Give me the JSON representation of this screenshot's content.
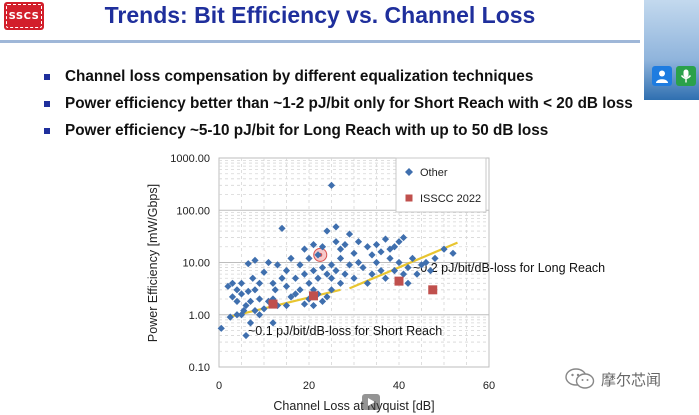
{
  "logo": {
    "text": "SSCS"
  },
  "title": "Trends: Bit Efficiency vs. Channel Loss",
  "bullets": [
    "Channel loss compensation by different equalization techniques",
    "Power efficiency better than ~1-2 pJ/bit only for Short Reach with < 20 dB loss",
    "Power efficiency ~5-10 pJ/bit for Long Reach with up to 50 dB loss"
  ],
  "watermark": {
    "text": "摩尔芯闻"
  },
  "colors": {
    "title": "#1f2f9c",
    "other": "#3f6fae",
    "isscc": "#c0504d",
    "trend": "#e8c530",
    "highlight": "#d9534f"
  },
  "chart_data": {
    "type": "scatter",
    "title": "",
    "xlabel": "Channel Loss at Nyquist [dB]",
    "ylabel": "Power Efficiency [mW/Gbps]",
    "xlim": [
      0,
      60
    ],
    "ylim": [
      0.1,
      1000
    ],
    "yscale": "log",
    "x_ticks": [
      "0",
      "20",
      "40",
      "60"
    ],
    "y_ticks": [
      "0.10",
      "1.00",
      "10.00",
      "100.00",
      "1000.00"
    ],
    "legend": {
      "position": "top-right",
      "entries": [
        "Other",
        "ISSCC 2022"
      ]
    },
    "series": [
      {
        "name": "Other",
        "marker": "diamond",
        "points": [
          [
            0.5,
            0.55
          ],
          [
            2,
            3.5
          ],
          [
            2.5,
            0.9
          ],
          [
            3,
            2.2
          ],
          [
            3,
            4
          ],
          [
            4,
            1
          ],
          [
            4,
            1.8
          ],
          [
            4,
            3
          ],
          [
            5,
            1
          ],
          [
            5,
            2.5
          ],
          [
            5,
            4
          ],
          [
            5.5,
            1.2
          ],
          [
            6,
            0.4
          ],
          [
            6,
            1.5
          ],
          [
            6.5,
            2.8
          ],
          [
            6.5,
            9.5
          ],
          [
            7,
            0.7
          ],
          [
            7,
            1.8
          ],
          [
            7.5,
            5
          ],
          [
            8,
            1.2
          ],
          [
            8,
            3
          ],
          [
            8,
            11
          ],
          [
            9,
            1
          ],
          [
            9,
            2
          ],
          [
            9,
            4
          ],
          [
            10,
            1.3
          ],
          [
            10,
            6.5
          ],
          [
            11,
            1.8
          ],
          [
            11,
            10
          ],
          [
            12,
            0.7
          ],
          [
            12,
            2
          ],
          [
            12,
            4
          ],
          [
            12.5,
            3
          ],
          [
            13,
            1.5
          ],
          [
            13,
            9
          ],
          [
            14,
            5
          ],
          [
            14,
            45
          ],
          [
            15,
            1.5
          ],
          [
            15,
            3.5
          ],
          [
            15,
            7
          ],
          [
            16,
            2.2
          ],
          [
            16,
            12
          ],
          [
            17,
            2.5
          ],
          [
            17,
            5
          ],
          [
            18,
            3
          ],
          [
            18,
            9
          ],
          [
            19,
            1.6
          ],
          [
            19,
            6
          ],
          [
            19,
            18
          ],
          [
            20,
            2
          ],
          [
            20,
            4
          ],
          [
            20,
            12
          ],
          [
            21,
            1.5
          ],
          [
            21,
            3
          ],
          [
            21,
            7
          ],
          [
            21,
            22
          ],
          [
            22,
            2.5
          ],
          [
            22,
            5
          ],
          [
            22,
            14
          ],
          [
            23,
            1.8
          ],
          [
            23,
            8
          ],
          [
            23,
            20
          ],
          [
            24,
            2.2
          ],
          [
            24,
            6
          ],
          [
            24,
            40
          ],
          [
            25,
            3
          ],
          [
            25,
            5
          ],
          [
            25,
            9
          ],
          [
            25,
            300
          ],
          [
            26,
            7
          ],
          [
            26,
            25
          ],
          [
            26,
            48
          ],
          [
            27,
            4
          ],
          [
            27,
            12
          ],
          [
            27,
            18
          ],
          [
            28,
            6
          ],
          [
            28,
            22
          ],
          [
            29,
            9
          ],
          [
            29,
            35
          ],
          [
            30,
            5
          ],
          [
            30,
            15
          ],
          [
            31,
            10
          ],
          [
            31,
            25
          ],
          [
            32,
            8
          ],
          [
            33,
            4
          ],
          [
            33,
            20
          ],
          [
            34,
            6
          ],
          [
            34,
            14
          ],
          [
            35,
            10
          ],
          [
            35,
            22
          ],
          [
            36,
            7
          ],
          [
            36,
            16
          ],
          [
            37,
            5
          ],
          [
            37,
            28
          ],
          [
            38,
            12
          ],
          [
            38,
            18
          ],
          [
            39,
            7
          ],
          [
            39,
            20
          ],
          [
            40,
            10
          ],
          [
            40,
            25
          ],
          [
            41,
            6
          ],
          [
            41,
            30
          ],
          [
            42,
            4
          ],
          [
            42,
            8
          ],
          [
            43,
            12
          ],
          [
            44,
            6
          ],
          [
            45,
            9
          ],
          [
            46,
            10
          ],
          [
            47,
            7
          ],
          [
            48,
            12
          ],
          [
            50,
            18
          ],
          [
            52,
            15
          ]
        ]
      },
      {
        "name": "ISSCC 2022",
        "marker": "square",
        "points": [
          [
            12,
            1.6
          ],
          [
            21,
            2.3
          ],
          [
            40,
            4.4
          ],
          [
            47.5,
            3.0
          ]
        ]
      }
    ],
    "highlight_point": [
      22.5,
      14
    ],
    "trend_lines": [
      {
        "label": "~0.1 pJ/bit/dB-loss for Short Reach",
        "from": [
          2,
          0.9
        ],
        "to": [
          27,
          3.0
        ]
      },
      {
        "label": "~0.2 pJ/bit/dB-loss for Long Reach",
        "from": [
          29,
          3.2
        ],
        "to": [
          53,
          24
        ]
      }
    ]
  }
}
